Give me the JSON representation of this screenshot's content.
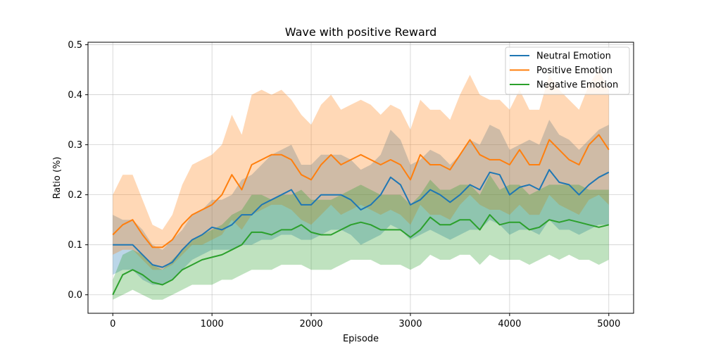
{
  "chart_data": {
    "type": "line",
    "title": "Wave with positive Reward",
    "xlabel": "Episode",
    "ylabel": "Ratio (%)",
    "xlim": [
      -250,
      5250
    ],
    "ylim": [
      -0.037,
      0.505
    ],
    "xticks": [
      0,
      1000,
      2000,
      3000,
      4000,
      5000
    ],
    "yticks": [
      0.0,
      0.1,
      0.2,
      0.3,
      0.4,
      0.5
    ],
    "xtick_labels": [
      "0",
      "1000",
      "2000",
      "3000",
      "4000",
      "5000"
    ],
    "ytick_labels": [
      "0.0",
      "0.1",
      "0.2",
      "0.3",
      "0.4",
      "0.5"
    ],
    "grid": true,
    "legend_position": "top-right",
    "x": [
      0,
      100,
      200,
      300,
      400,
      500,
      600,
      700,
      800,
      900,
      1000,
      1100,
      1200,
      1300,
      1400,
      1500,
      1600,
      1700,
      1800,
      1900,
      2000,
      2100,
      2200,
      2300,
      2400,
      2500,
      2600,
      2700,
      2800,
      2900,
      3000,
      3100,
      3200,
      3300,
      3400,
      3500,
      3600,
      3700,
      3800,
      3900,
      4000,
      4100,
      4200,
      4300,
      4400,
      4500,
      4600,
      4700,
      4800,
      4900,
      5000
    ],
    "series": [
      {
        "name": "Neutral Emotion",
        "color": "#1f77b4",
        "values": [
          0.1,
          0.1,
          0.1,
          0.08,
          0.06,
          0.055,
          0.065,
          0.09,
          0.11,
          0.12,
          0.135,
          0.13,
          0.14,
          0.16,
          0.16,
          0.18,
          0.19,
          0.2,
          0.21,
          0.18,
          0.18,
          0.2,
          0.2,
          0.2,
          0.19,
          0.17,
          0.18,
          0.2,
          0.235,
          0.22,
          0.18,
          0.19,
          0.21,
          0.2,
          0.185,
          0.2,
          0.22,
          0.21,
          0.245,
          0.24,
          0.2,
          0.215,
          0.22,
          0.21,
          0.25,
          0.225,
          0.22,
          0.2,
          0.22,
          0.235,
          0.245
        ],
        "lower": [
          0.04,
          0.05,
          0.05,
          0.03,
          0.02,
          0.02,
          0.03,
          0.05,
          0.07,
          0.08,
          0.09,
          0.09,
          0.09,
          0.1,
          0.1,
          0.11,
          0.11,
          0.12,
          0.12,
          0.11,
          0.11,
          0.12,
          0.13,
          0.13,
          0.12,
          0.1,
          0.11,
          0.12,
          0.14,
          0.13,
          0.11,
          0.12,
          0.13,
          0.12,
          0.11,
          0.12,
          0.13,
          0.13,
          0.15,
          0.14,
          0.12,
          0.13,
          0.13,
          0.12,
          0.15,
          0.13,
          0.13,
          0.12,
          0.13,
          0.14,
          0.14
        ],
        "upper": [
          0.16,
          0.15,
          0.15,
          0.13,
          0.1,
          0.09,
          0.11,
          0.13,
          0.16,
          0.17,
          0.19,
          0.19,
          0.2,
          0.23,
          0.24,
          0.26,
          0.28,
          0.29,
          0.3,
          0.26,
          0.26,
          0.28,
          0.28,
          0.28,
          0.27,
          0.25,
          0.26,
          0.28,
          0.33,
          0.31,
          0.26,
          0.27,
          0.29,
          0.28,
          0.26,
          0.28,
          0.31,
          0.3,
          0.34,
          0.33,
          0.29,
          0.3,
          0.31,
          0.3,
          0.35,
          0.32,
          0.31,
          0.29,
          0.31,
          0.33,
          0.34
        ]
      },
      {
        "name": "Positive Emotion",
        "color": "#ff7f0e",
        "values": [
          0.12,
          0.14,
          0.15,
          0.12,
          0.095,
          0.095,
          0.11,
          0.14,
          0.16,
          0.17,
          0.18,
          0.2,
          0.24,
          0.21,
          0.26,
          0.27,
          0.28,
          0.28,
          0.27,
          0.24,
          0.23,
          0.26,
          0.28,
          0.26,
          0.27,
          0.28,
          0.27,
          0.26,
          0.27,
          0.26,
          0.23,
          0.28,
          0.26,
          0.26,
          0.25,
          0.28,
          0.31,
          0.28,
          0.27,
          0.27,
          0.26,
          0.29,
          0.26,
          0.26,
          0.31,
          0.29,
          0.27,
          0.26,
          0.3,
          0.32,
          0.29
        ],
        "lower": [
          0.08,
          0.09,
          0.09,
          0.07,
          0.05,
          0.05,
          0.06,
          0.08,
          0.1,
          0.1,
          0.11,
          0.12,
          0.15,
          0.13,
          0.16,
          0.17,
          0.18,
          0.18,
          0.17,
          0.15,
          0.14,
          0.16,
          0.18,
          0.16,
          0.17,
          0.18,
          0.17,
          0.16,
          0.17,
          0.16,
          0.14,
          0.18,
          0.16,
          0.16,
          0.15,
          0.18,
          0.2,
          0.18,
          0.17,
          0.17,
          0.16,
          0.18,
          0.16,
          0.16,
          0.2,
          0.18,
          0.17,
          0.16,
          0.19,
          0.2,
          0.18
        ],
        "upper": [
          0.2,
          0.24,
          0.24,
          0.19,
          0.14,
          0.13,
          0.16,
          0.22,
          0.26,
          0.27,
          0.28,
          0.3,
          0.36,
          0.32,
          0.4,
          0.41,
          0.4,
          0.41,
          0.39,
          0.36,
          0.34,
          0.38,
          0.4,
          0.37,
          0.38,
          0.39,
          0.38,
          0.36,
          0.38,
          0.37,
          0.33,
          0.39,
          0.37,
          0.37,
          0.35,
          0.4,
          0.44,
          0.4,
          0.39,
          0.39,
          0.37,
          0.41,
          0.37,
          0.37,
          0.44,
          0.41,
          0.39,
          0.37,
          0.42,
          0.45,
          0.41
        ]
      },
      {
        "name": "Negative Emotion",
        "color": "#2ca02c",
        "values": [
          0.0,
          0.04,
          0.05,
          0.04,
          0.025,
          0.02,
          0.03,
          0.05,
          0.06,
          0.07,
          0.075,
          0.08,
          0.09,
          0.1,
          0.125,
          0.125,
          0.12,
          0.13,
          0.13,
          0.14,
          0.125,
          0.12,
          0.12,
          0.13,
          0.14,
          0.145,
          0.14,
          0.13,
          0.13,
          0.13,
          0.115,
          0.13,
          0.155,
          0.14,
          0.14,
          0.15,
          0.15,
          0.13,
          0.16,
          0.14,
          0.145,
          0.145,
          0.13,
          0.135,
          0.15,
          0.145,
          0.15,
          0.145,
          0.14,
          0.135,
          0.14
        ],
        "lower": [
          -0.01,
          0.0,
          0.01,
          0.0,
          -0.01,
          -0.01,
          0.0,
          0.01,
          0.02,
          0.02,
          0.02,
          0.03,
          0.03,
          0.04,
          0.05,
          0.05,
          0.05,
          0.06,
          0.06,
          0.06,
          0.05,
          0.05,
          0.05,
          0.06,
          0.07,
          0.07,
          0.07,
          0.06,
          0.06,
          0.06,
          0.05,
          0.06,
          0.08,
          0.07,
          0.07,
          0.08,
          0.08,
          0.06,
          0.08,
          0.07,
          0.07,
          0.07,
          0.06,
          0.07,
          0.08,
          0.07,
          0.08,
          0.07,
          0.07,
          0.06,
          0.07
        ],
        "upper": [
          0.03,
          0.08,
          0.09,
          0.08,
          0.06,
          0.05,
          0.07,
          0.09,
          0.11,
          0.12,
          0.13,
          0.14,
          0.16,
          0.17,
          0.2,
          0.2,
          0.19,
          0.2,
          0.2,
          0.21,
          0.19,
          0.19,
          0.19,
          0.2,
          0.21,
          0.22,
          0.21,
          0.2,
          0.2,
          0.2,
          0.18,
          0.2,
          0.23,
          0.21,
          0.21,
          0.22,
          0.22,
          0.2,
          0.24,
          0.21,
          0.22,
          0.22,
          0.2,
          0.21,
          0.22,
          0.22,
          0.22,
          0.22,
          0.21,
          0.21,
          0.21
        ]
      }
    ]
  }
}
